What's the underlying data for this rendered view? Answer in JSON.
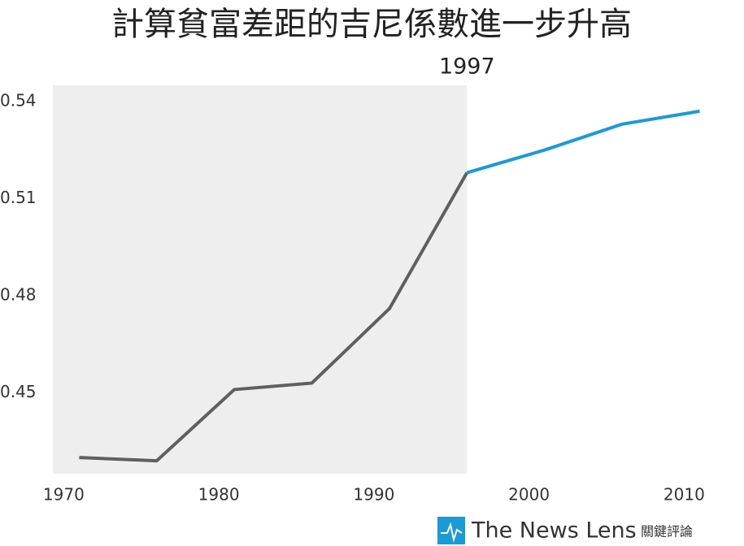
{
  "chart_data": {
    "type": "line",
    "title": "計算貧富差距的吉尼係數進一步升高",
    "annotation": "1997",
    "series": [
      {
        "color": "#5f5f5f",
        "x": [
          1971,
          1976,
          1981,
          1986,
          1991,
          1996
        ],
        "values": [
          0.43,
          0.429,
          0.451,
          0.453,
          0.476,
          0.518
        ]
      },
      {
        "color": "#1a9ad6",
        "x": [
          1996,
          2001,
          2006,
          2011
        ],
        "values": [
          0.518,
          0.525,
          0.533,
          0.537
        ]
      }
    ],
    "xlim": [
      1969.3,
      2011.5
    ],
    "xticks": [
      1970,
      1980,
      1990,
      2000,
      2010
    ],
    "ylim": [
      0.425,
      0.545
    ],
    "yticks": [
      0.45,
      0.48,
      0.51,
      0.54
    ],
    "shaded_xmax": 1996,
    "shade_color": "#eeeeee",
    "footer": "The News Lens",
    "footer_sub": "關鍵評論"
  }
}
